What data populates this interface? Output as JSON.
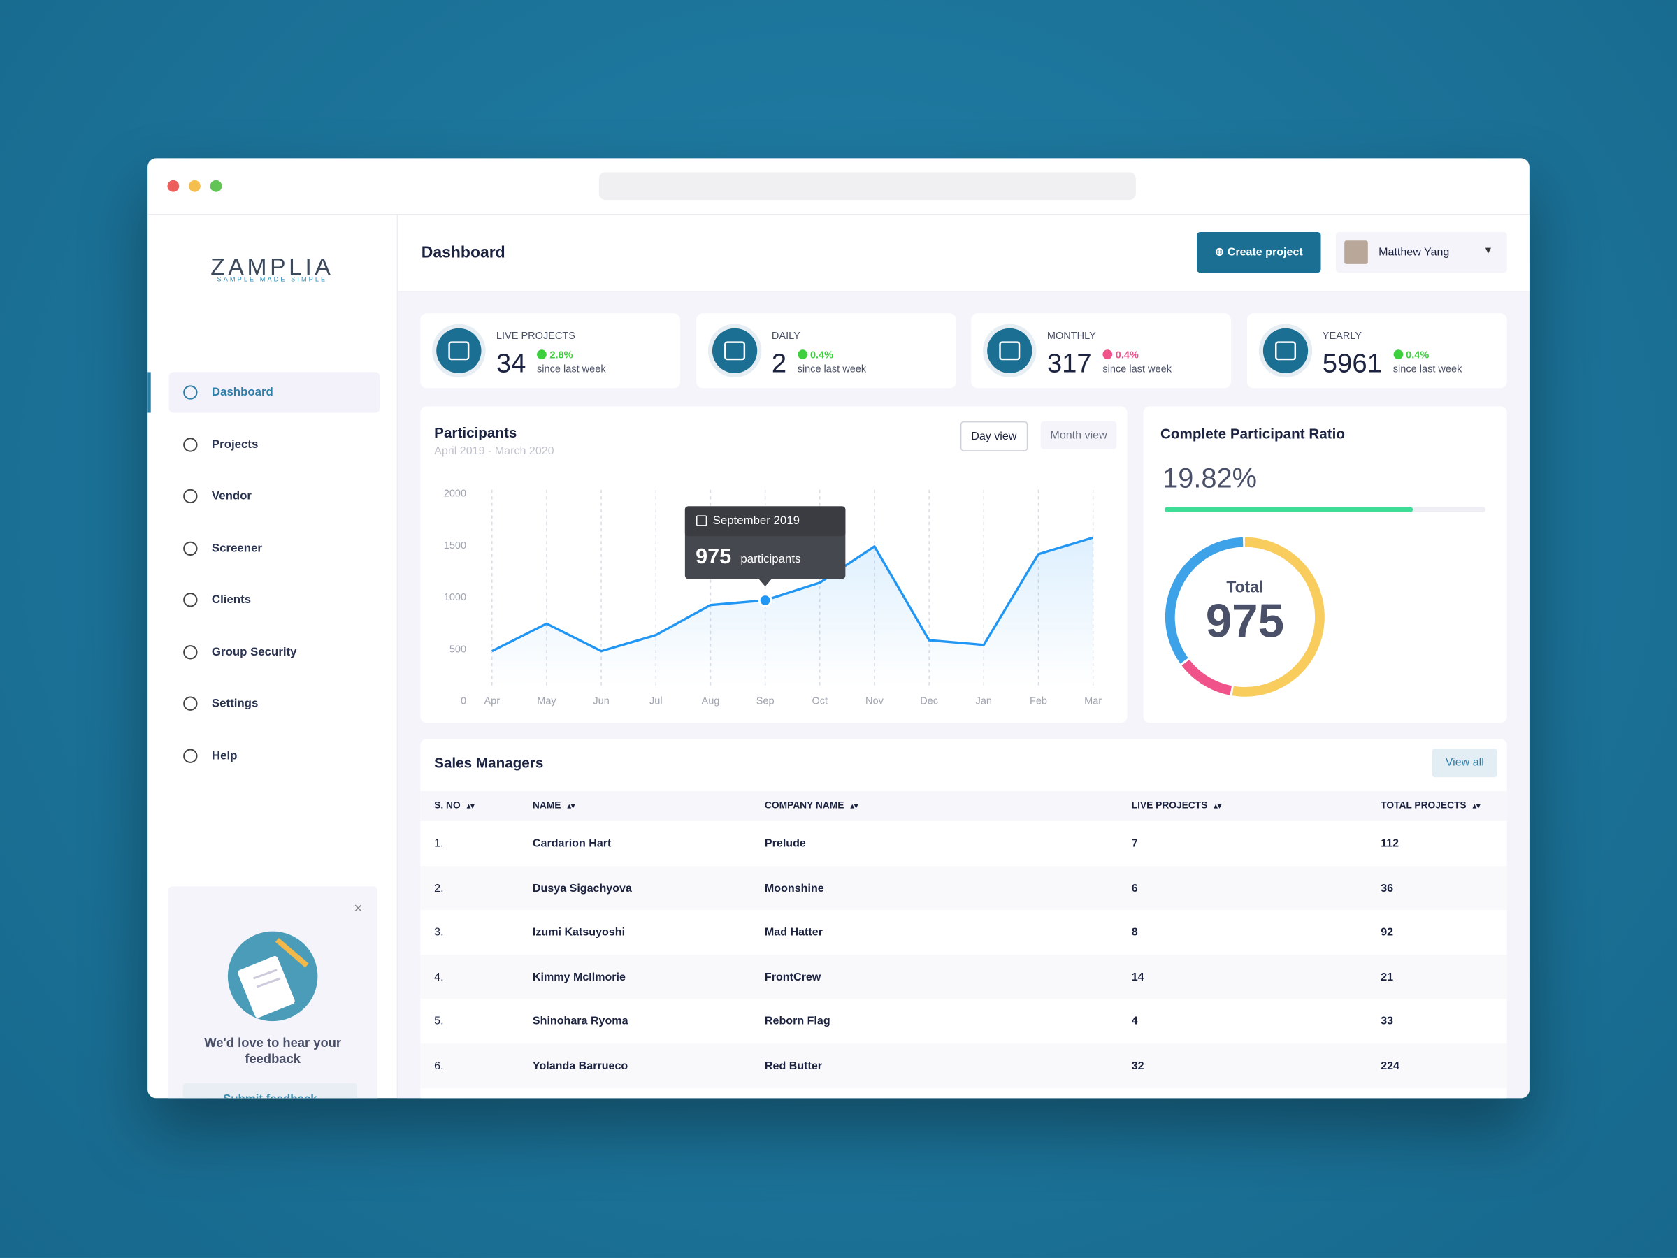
{
  "logo": {
    "name": "ZAMPLIA",
    "tagline": "SAMPLE MADE SIMPLE"
  },
  "nav": {
    "items": [
      "Dashboard",
      "Projects",
      "Vendor",
      "Screener",
      "Clients",
      "Group Security",
      "Settings",
      "Help"
    ],
    "active": 0
  },
  "feedback": {
    "message": "We'd love to hear your feedback",
    "button": "Submit feedback"
  },
  "header": {
    "title": "Dashboard",
    "create_button": "Create project",
    "user": "Matthew Yang"
  },
  "stats": [
    {
      "label": "LIVE PROJECTS",
      "value": 34,
      "change": "2.8%",
      "trend": "up",
      "note": "since last week"
    },
    {
      "label": "DAILY",
      "value": 2,
      "change": "0.4%",
      "trend": "up",
      "note": "since last week"
    },
    {
      "label": "MONTHLY",
      "value": 317,
      "change": "0.4%",
      "trend": "down",
      "note": "since last week"
    },
    {
      "label": "YEARLY",
      "value": 5961,
      "change": "0.4%",
      "trend": "up",
      "note": "since last week"
    }
  ],
  "participants_chart": {
    "type": "line",
    "title": "Participants",
    "subtitle": "April 2019 - March 2020",
    "views": [
      "Day view",
      "Month view"
    ],
    "active_view": 0,
    "categories": [
      "Apr",
      "May",
      "Jun",
      "Jul",
      "Aug",
      "Sep",
      "Oct",
      "Nov",
      "Dec",
      "Jan",
      "Feb",
      "Mar"
    ],
    "values": [
      485,
      750,
      485,
      640,
      930,
      975,
      1145,
      1495,
      590,
      545,
      1420,
      1580
    ],
    "color": "#2196f3",
    "ylim": [
      0,
      2000
    ],
    "yticks": [
      0,
      500,
      1000,
      1500,
      2000
    ],
    "grid": true,
    "tooltip": {
      "title": "September 2019",
      "index": 5,
      "unit": "participants"
    }
  },
  "ratio": {
    "title": "Complete Participant Ratio",
    "value": "19.82%",
    "total_label": "Total",
    "total": 975,
    "segments": [
      {
        "color": "#f9cd5d",
        "value": 53
      },
      {
        "color": "#f0528a",
        "value": 12
      },
      {
        "color": "#3ea2e8",
        "value": 35
      }
    ]
  },
  "table": {
    "title": "Sales Managers",
    "view_all": "View all",
    "columns": [
      "S. NO",
      "NAME",
      "COMPANY NAME",
      "LIVE PROJECTS",
      "TOTAL PROJECTS"
    ],
    "rows": [
      [
        "1.",
        "Cardarion Hart",
        "Prelude",
        7,
        112
      ],
      [
        "2.",
        "Dusya Sigachyova",
        "Moonshine",
        6,
        36
      ],
      [
        "3.",
        "Izumi Katsuyoshi",
        "Mad Hatter",
        8,
        92
      ],
      [
        "4.",
        "Kimmy McIlmorie",
        "FrontCrew",
        14,
        21
      ],
      [
        "5.",
        "Shinohara Ryoma",
        "Reborn Flag",
        4,
        33
      ],
      [
        "6.",
        "Yolanda Barrueco",
        "Red Butter",
        32,
        224
      ]
    ]
  }
}
